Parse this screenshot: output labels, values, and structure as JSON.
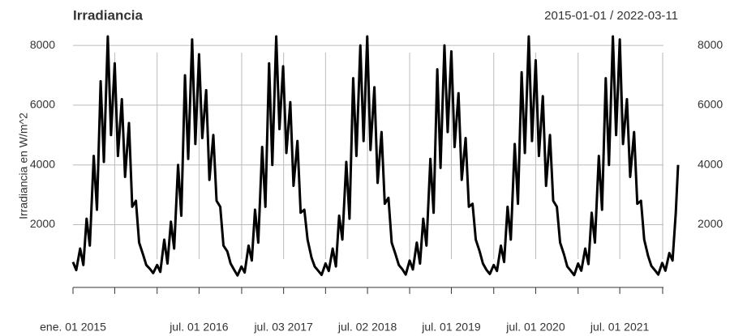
{
  "chart_data": {
    "type": "line",
    "title": "Irradiancia",
    "subtitle": "2015-01-01 / 2022-03-11",
    "ylabel": "Irradiancia en W/m^2",
    "color": "#000000",
    "grid": true,
    "xlim": [
      "2015-01-01",
      "2022-03-11"
    ],
    "xticks": [
      {
        "value": "2015-01-01",
        "label": "ene. 01 2015"
      },
      {
        "value": "2016-07-01",
        "label": "jul. 01 2016"
      },
      {
        "value": "2017-07-03",
        "label": "jul. 03 2017"
      },
      {
        "value": "2018-07-02",
        "label": "jul. 02 2018"
      },
      {
        "value": "2019-07-01",
        "label": "jul. 01 2019"
      },
      {
        "value": "2020-07-01",
        "label": "jul. 01 2020"
      },
      {
        "value": "2021-07-01",
        "label": "jul. 01 2021"
      }
    ],
    "xminor_ticks": [
      "2015-07-01",
      "2016-01-01",
      "2017-01-02",
      "2018-01-01",
      "2019-01-01",
      "2020-01-01",
      "2021-01-01",
      "2022-01-03"
    ],
    "ylim": [
      -100,
      8300
    ],
    "yticks": [
      2000,
      4000,
      6000,
      8000
    ],
    "x": [
      "2015-01-01",
      "2015-01-15",
      "2015-02-01",
      "2015-02-15",
      "2015-03-01",
      "2015-03-15",
      "2015-04-01",
      "2015-04-15",
      "2015-05-01",
      "2015-05-15",
      "2015-06-01",
      "2015-06-15",
      "2015-07-01",
      "2015-07-15",
      "2015-08-01",
      "2015-08-15",
      "2015-09-01",
      "2015-09-15",
      "2015-10-01",
      "2015-10-15",
      "2015-11-01",
      "2015-11-15",
      "2015-12-01",
      "2015-12-15",
      "2016-01-01",
      "2016-01-15",
      "2016-02-01",
      "2016-02-15",
      "2016-03-01",
      "2016-03-15",
      "2016-04-01",
      "2016-04-15",
      "2016-05-01",
      "2016-05-15",
      "2016-06-01",
      "2016-06-15",
      "2016-07-01",
      "2016-07-15",
      "2016-08-01",
      "2016-08-15",
      "2016-09-01",
      "2016-09-15",
      "2016-10-01",
      "2016-10-15",
      "2016-11-01",
      "2016-11-15",
      "2016-12-01",
      "2016-12-15",
      "2017-01-01",
      "2017-01-15",
      "2017-02-01",
      "2017-02-15",
      "2017-03-01",
      "2017-03-15",
      "2017-04-01",
      "2017-04-15",
      "2017-05-01",
      "2017-05-15",
      "2017-06-01",
      "2017-06-15",
      "2017-07-01",
      "2017-07-15",
      "2017-08-01",
      "2017-08-15",
      "2017-09-01",
      "2017-09-15",
      "2017-10-01",
      "2017-10-15",
      "2017-11-01",
      "2017-11-15",
      "2017-12-01",
      "2017-12-15",
      "2018-01-01",
      "2018-01-15",
      "2018-02-01",
      "2018-02-15",
      "2018-03-01",
      "2018-03-15",
      "2018-04-01",
      "2018-04-15",
      "2018-05-01",
      "2018-05-15",
      "2018-06-01",
      "2018-06-15",
      "2018-07-01",
      "2018-07-15",
      "2018-08-01",
      "2018-08-15",
      "2018-09-01",
      "2018-09-15",
      "2018-10-01",
      "2018-10-15",
      "2018-11-01",
      "2018-11-15",
      "2018-12-01",
      "2018-12-15",
      "2019-01-01",
      "2019-01-15",
      "2019-02-01",
      "2019-02-15",
      "2019-03-01",
      "2019-03-15",
      "2019-04-01",
      "2019-04-15",
      "2019-05-01",
      "2019-05-15",
      "2019-06-01",
      "2019-06-15",
      "2019-07-01",
      "2019-07-15",
      "2019-08-01",
      "2019-08-15",
      "2019-09-01",
      "2019-09-15",
      "2019-10-01",
      "2019-10-15",
      "2019-11-01",
      "2019-11-15",
      "2019-12-01",
      "2019-12-15",
      "2020-01-01",
      "2020-01-15",
      "2020-02-01",
      "2020-02-15",
      "2020-03-01",
      "2020-03-15",
      "2020-04-01",
      "2020-04-15",
      "2020-05-01",
      "2020-05-15",
      "2020-06-01",
      "2020-06-15",
      "2020-07-01",
      "2020-07-15",
      "2020-08-01",
      "2020-08-15",
      "2020-09-01",
      "2020-09-15",
      "2020-10-01",
      "2020-10-15",
      "2020-11-01",
      "2020-11-15",
      "2020-12-01",
      "2020-12-15",
      "2021-01-01",
      "2021-01-15",
      "2021-02-01",
      "2021-02-15",
      "2021-03-01",
      "2021-03-15",
      "2021-04-01",
      "2021-04-15",
      "2021-05-01",
      "2021-05-15",
      "2021-06-01",
      "2021-06-15",
      "2021-07-01",
      "2021-07-15",
      "2021-08-01",
      "2021-08-15",
      "2021-09-01",
      "2021-09-15",
      "2021-10-01",
      "2021-10-15",
      "2021-11-01",
      "2021-11-15",
      "2021-12-01",
      "2021-12-15",
      "2022-01-01",
      "2022-01-15",
      "2022-02-01",
      "2022-02-15",
      "2022-03-01",
      "2022-03-11"
    ],
    "values": [
      750,
      480,
      1200,
      650,
      2200,
      1300,
      4300,
      2500,
      6800,
      4100,
      8300,
      5000,
      7400,
      4300,
      6200,
      3600,
      5400,
      2600,
      2800,
      1400,
      1000,
      650,
      520,
      380,
      650,
      420,
      1500,
      700,
      2100,
      1200,
      4000,
      2300,
      7000,
      4200,
      8200,
      4700,
      7700,
      4900,
      6500,
      3500,
      5000,
      2800,
      2600,
      1300,
      1100,
      700,
      480,
      300,
      600,
      400,
      1300,
      800,
      2500,
      1400,
      4600,
      2600,
      7400,
      4000,
      8300,
      5200,
      7300,
      4400,
      6100,
      3300,
      4800,
      2400,
      2500,
      1500,
      900,
      600,
      450,
      320,
      700,
      450,
      1200,
      600,
      2300,
      1500,
      4100,
      2200,
      6900,
      4300,
      8000,
      4800,
      8300,
      4500,
      6600,
      3400,
      5100,
      2700,
      2900,
      1400,
      1000,
      650,
      500,
      330,
      800,
      500,
      1400,
      700,
      2200,
      1300,
      4200,
      2400,
      7200,
      3900,
      8000,
      5100,
      7800,
      4600,
      6400,
      3500,
      4900,
      2600,
      2700,
      1500,
      1100,
      700,
      480,
      350,
      650,
      450,
      1300,
      750,
      2600,
      1500,
      4700,
      2700,
      7100,
      4400,
      8300,
      4800,
      7500,
      4300,
      6300,
      3300,
      5000,
      2800,
      2600,
      1400,
      1000,
      600,
      450,
      310,
      700,
      460,
      1200,
      680,
      2400,
      1400,
      4300,
      2500,
      6900,
      4000,
      8300,
      5000,
      8200,
      4700,
      6200,
      3600,
      5100,
      2700,
      2800,
      1500,
      950,
      620,
      470,
      330,
      720,
      460,
      1050,
      800,
      2400,
      4000
    ]
  }
}
